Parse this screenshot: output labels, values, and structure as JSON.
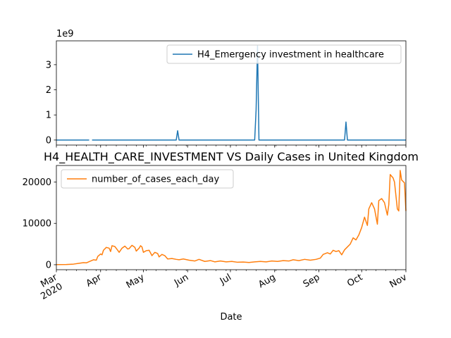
{
  "chart_data": [
    {
      "type": "line",
      "title": "",
      "xlabel": "",
      "ylabel": "",
      "offset_text": "1e9",
      "ylim": [
        -0.2,
        3.95
      ],
      "yticks": [
        0,
        1,
        2,
        3
      ],
      "ytick_labels": [
        "0",
        "1",
        "2",
        "3"
      ],
      "show_x_ticklabels": false,
      "legend_position": "upper right",
      "grid": false,
      "series": [
        {
          "name": "H4_Emergency investment in healthcare",
          "color": "#1f77b4",
          "segments": [
            [
              [
                "2020-03-01",
                0
              ],
              [
                "2020-03-24",
                0
              ]
            ],
            [
              [
                "2020-03-26",
                0
              ],
              [
                "2020-05-24",
                0
              ],
              [
                "2020-05-25",
                0.37
              ],
              [
                "2020-05-26",
                0
              ],
              [
                "2020-07-18",
                0
              ],
              [
                "2020-07-19",
                1.2
              ],
              [
                "2020-07-20",
                3.75
              ],
              [
                "2020-07-21",
                0
              ],
              [
                "2020-09-19",
                0
              ],
              [
                "2020-09-20",
                0.72
              ],
              [
                "2020-09-21",
                0
              ],
              [
                "2020-11-01",
                0
              ]
            ]
          ]
        }
      ]
    },
    {
      "type": "line",
      "title": "H4_HEALTH_CARE_INVESTMENT VS Daily Cases in United Kingdom",
      "xlabel": "Date",
      "ylabel": "",
      "ylim": [
        -1200,
        24000
      ],
      "yticks": [
        0,
        10000,
        20000
      ],
      "ytick_labels": [
        "0",
        "10000",
        "20000"
      ],
      "xlim": [
        "2020-03-01",
        "2020-11-01"
      ],
      "x_major_ticks": [
        {
          "date": "2020-03-01",
          "label": "Mar\n2020"
        },
        {
          "date": "2020-04-01",
          "label": "Apr"
        },
        {
          "date": "2020-05-01",
          "label": "May"
        },
        {
          "date": "2020-06-01",
          "label": "Jun"
        },
        {
          "date": "2020-07-01",
          "label": "Jul"
        },
        {
          "date": "2020-08-01",
          "label": "Aug"
        },
        {
          "date": "2020-09-01",
          "label": "Sep"
        },
        {
          "date": "2020-10-01",
          "label": "Oct"
        },
        {
          "date": "2020-11-01",
          "label": "Nov"
        }
      ],
      "legend_position": "upper left",
      "grid": false,
      "series": [
        {
          "name": "number_of_cases_each_day",
          "color": "#ff7f0e",
          "points": [
            [
              "2020-03-01",
              30
            ],
            [
              "2020-03-08",
              60
            ],
            [
              "2020-03-13",
              150
            ],
            [
              "2020-03-17",
              350
            ],
            [
              "2020-03-20",
              500
            ],
            [
              "2020-03-22",
              450
            ],
            [
              "2020-03-25",
              900
            ],
            [
              "2020-03-27",
              1200
            ],
            [
              "2020-03-29",
              1100
            ],
            [
              "2020-03-30",
              2000
            ],
            [
              "2020-04-01",
              2600
            ],
            [
              "2020-04-02",
              2400
            ],
            [
              "2020-04-03",
              3500
            ],
            [
              "2020-04-05",
              4200
            ],
            [
              "2020-04-07",
              4000
            ],
            [
              "2020-04-08",
              3200
            ],
            [
              "2020-04-09",
              4600
            ],
            [
              "2020-04-11",
              4400
            ],
            [
              "2020-04-13",
              3500
            ],
            [
              "2020-04-14",
              3000
            ],
            [
              "2020-04-16",
              4000
            ],
            [
              "2020-04-18",
              4500
            ],
            [
              "2020-04-20",
              3800
            ],
            [
              "2020-04-21",
              3900
            ],
            [
              "2020-04-23",
              4700
            ],
            [
              "2020-04-25",
              4200
            ],
            [
              "2020-04-26",
              3300
            ],
            [
              "2020-04-28",
              4000
            ],
            [
              "2020-04-29",
              4600
            ],
            [
              "2020-04-30",
              4300
            ],
            [
              "2020-05-01",
              3000
            ],
            [
              "2020-05-03",
              3400
            ],
            [
              "2020-05-05",
              3500
            ],
            [
              "2020-05-07",
              2200
            ],
            [
              "2020-05-08",
              2600
            ],
            [
              "2020-05-09",
              3000
            ],
            [
              "2020-05-11",
              2700
            ],
            [
              "2020-05-12",
              1900
            ],
            [
              "2020-05-14",
              2500
            ],
            [
              "2020-05-16",
              2200
            ],
            [
              "2020-05-18",
              1400
            ],
            [
              "2020-05-21",
              1500
            ],
            [
              "2020-05-24",
              1300
            ],
            [
              "2020-05-26",
              1200
            ],
            [
              "2020-05-29",
              1400
            ],
            [
              "2020-06-02",
              1100
            ],
            [
              "2020-06-06",
              900
            ],
            [
              "2020-06-09",
              1300
            ],
            [
              "2020-06-13",
              800
            ],
            [
              "2020-06-17",
              1000
            ],
            [
              "2020-06-20",
              700
            ],
            [
              "2020-06-24",
              900
            ],
            [
              "2020-06-28",
              700
            ],
            [
              "2020-07-02",
              800
            ],
            [
              "2020-07-06",
              600
            ],
            [
              "2020-07-10",
              650
            ],
            [
              "2020-07-14",
              550
            ],
            [
              "2020-07-18",
              700
            ],
            [
              "2020-07-22",
              800
            ],
            [
              "2020-07-26",
              700
            ],
            [
              "2020-07-30",
              900
            ],
            [
              "2020-08-03",
              800
            ],
            [
              "2020-08-07",
              1000
            ],
            [
              "2020-08-11",
              900
            ],
            [
              "2020-08-14",
              1200
            ],
            [
              "2020-08-18",
              1000
            ],
            [
              "2020-08-22",
              1300
            ],
            [
              "2020-08-26",
              1100
            ],
            [
              "2020-08-30",
              1300
            ],
            [
              "2020-09-02",
              1600
            ],
            [
              "2020-09-04",
              2500
            ],
            [
              "2020-09-07",
              2900
            ],
            [
              "2020-09-09",
              2600
            ],
            [
              "2020-09-11",
              3500
            ],
            [
              "2020-09-13",
              3200
            ],
            [
              "2020-09-15",
              3400
            ],
            [
              "2020-09-17",
              2400
            ],
            [
              "2020-09-19",
              3600
            ],
            [
              "2020-09-21",
              4300
            ],
            [
              "2020-09-23",
              5000
            ],
            [
              "2020-09-25",
              6500
            ],
            [
              "2020-09-27",
              6000
            ],
            [
              "2020-09-29",
              7200
            ],
            [
              "2020-10-01",
              9000
            ],
            [
              "2020-10-03",
              11500
            ],
            [
              "2020-10-05",
              9500
            ],
            [
              "2020-10-06",
              13500
            ],
            [
              "2020-10-08",
              15000
            ],
            [
              "2020-10-10",
              13500
            ],
            [
              "2020-10-12",
              9800
            ],
            [
              "2020-10-13",
              15500
            ],
            [
              "2020-10-15",
              16000
            ],
            [
              "2020-10-17",
              15000
            ],
            [
              "2020-10-19",
              12000
            ],
            [
              "2020-10-20",
              14500
            ],
            [
              "2020-10-21",
              21800
            ],
            [
              "2020-10-23",
              21000
            ],
            [
              "2020-10-24",
              20000
            ],
            [
              "2020-10-26",
              13500
            ],
            [
              "2020-10-27",
              13000
            ],
            [
              "2020-10-28",
              22800
            ],
            [
              "2020-10-29",
              20500
            ],
            [
              "2020-10-31",
              19800
            ],
            [
              "2020-11-01",
              13000
            ]
          ]
        }
      ]
    }
  ]
}
